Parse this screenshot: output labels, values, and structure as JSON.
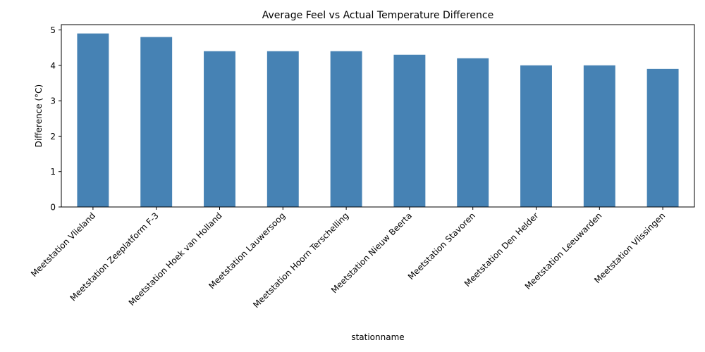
{
  "chart_data": {
    "type": "bar",
    "title": "Average Feel vs Actual Temperature Difference",
    "xlabel": "stationname",
    "ylabel": "Difference (°C)",
    "categories": [
      "Meetstation Vlieland",
      "Meetstation Zeeplatform F-3",
      "Meetstation Hoek van Holland",
      "Meetstation Lauwersoog",
      "Meetstation Hoorn Terschelling",
      "Meetstation Nieuw Beerta",
      "Meetstation Stavoren",
      "Meetstation Den Helder",
      "Meetstation Leeuwarden",
      "Meetstation Vlissingen"
    ],
    "values": [
      4.9,
      4.8,
      4.4,
      4.4,
      4.4,
      4.3,
      4.2,
      4.0,
      4.0,
      3.9
    ],
    "ylim": [
      0,
      5.15
    ],
    "yticks": [
      0,
      1,
      2,
      3,
      4,
      5
    ],
    "grid": false,
    "bar_color": "#4682b4"
  }
}
